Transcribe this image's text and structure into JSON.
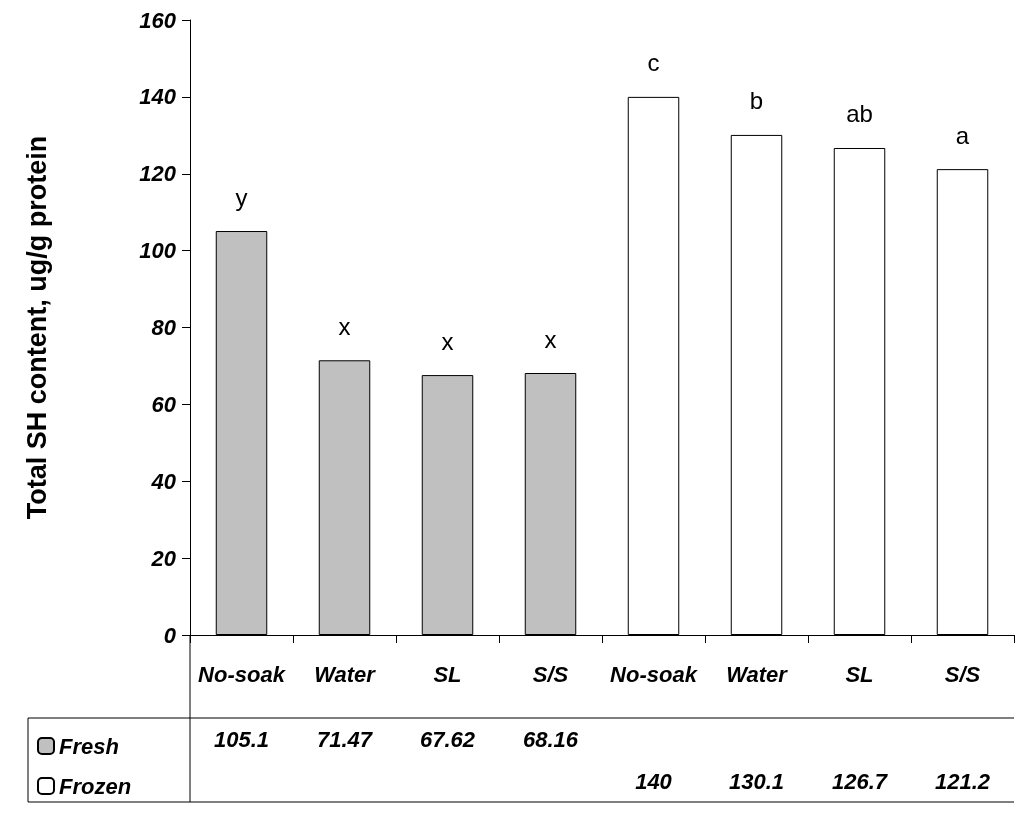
{
  "chart_data": {
    "type": "bar",
    "ylabel": "Total SH content, ug/g protein",
    "categories": [
      "No-soak",
      "Water",
      "SL",
      "S/S",
      "No-soak",
      "Water",
      "SL",
      "S/S"
    ],
    "series": [
      {
        "name": "Fresh",
        "color": "#c0c0c0",
        "values": [
          105.1,
          71.47,
          67.62,
          68.16,
          null,
          null,
          null,
          null
        ]
      },
      {
        "name": "Frozen",
        "color": "#ffffff",
        "values": [
          null,
          null,
          null,
          null,
          140,
          130.1,
          126.7,
          121.2
        ]
      }
    ],
    "ylim": [
      0,
      160
    ],
    "yticks": [
      0,
      20,
      40,
      60,
      80,
      100,
      120,
      140,
      160
    ],
    "annotations": [
      "y",
      "x",
      "x",
      "x",
      "c",
      "b",
      "ab",
      "a"
    ],
    "data_labels": true,
    "grid": false,
    "legend": "bottom left"
  }
}
